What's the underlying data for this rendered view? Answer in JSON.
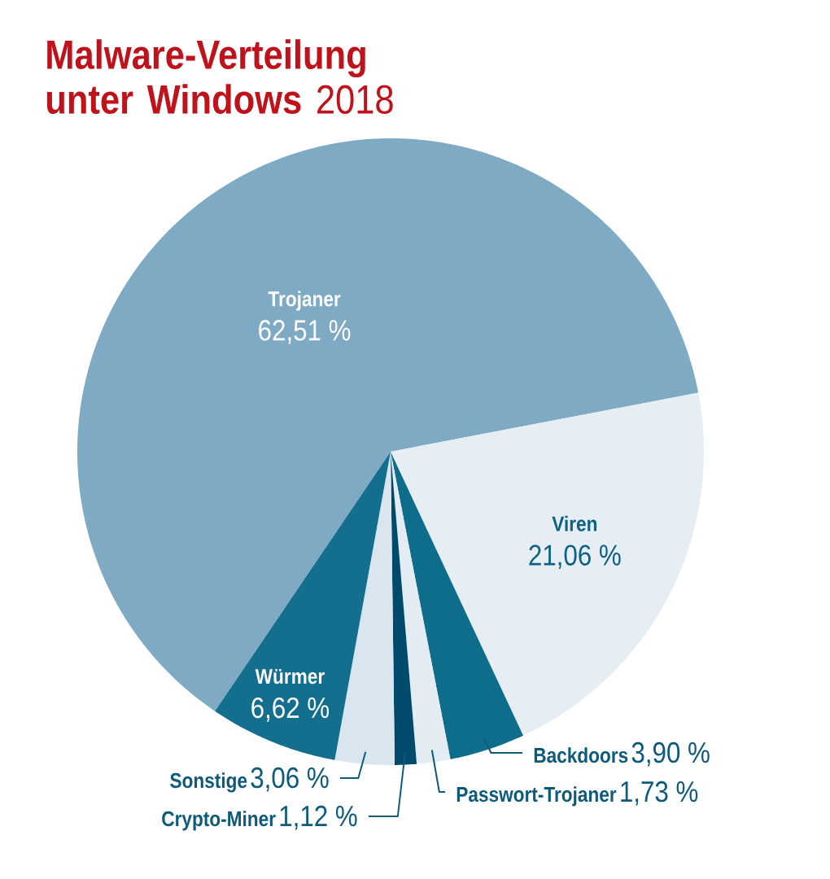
{
  "chart_data": {
    "type": "pie",
    "title": "**Malware-Verteilung unter Windows** 2018",
    "categories": [
      "Trojaner",
      "Viren",
      "Backdoors",
      "Passwort-Trojaner",
      "Crypto-Miner",
      "Sonstige",
      "Würmer"
    ],
    "values": [
      62.51,
      21.06,
      3.9,
      1.73,
      1.12,
      3.06,
      6.62
    ],
    "value_labels": [
      "62,51 %",
      "21,06 %",
      "3,90 %",
      "1,73 %",
      "1,12 %",
      "3,06 %",
      "6,62 %"
    ],
    "colors": [
      "#7eaac4",
      "#e6eef4",
      "#0f6d8c",
      "#e3ecf3",
      "#004b6b",
      "#d9e6ef",
      "#146f8e"
    ]
  }
}
